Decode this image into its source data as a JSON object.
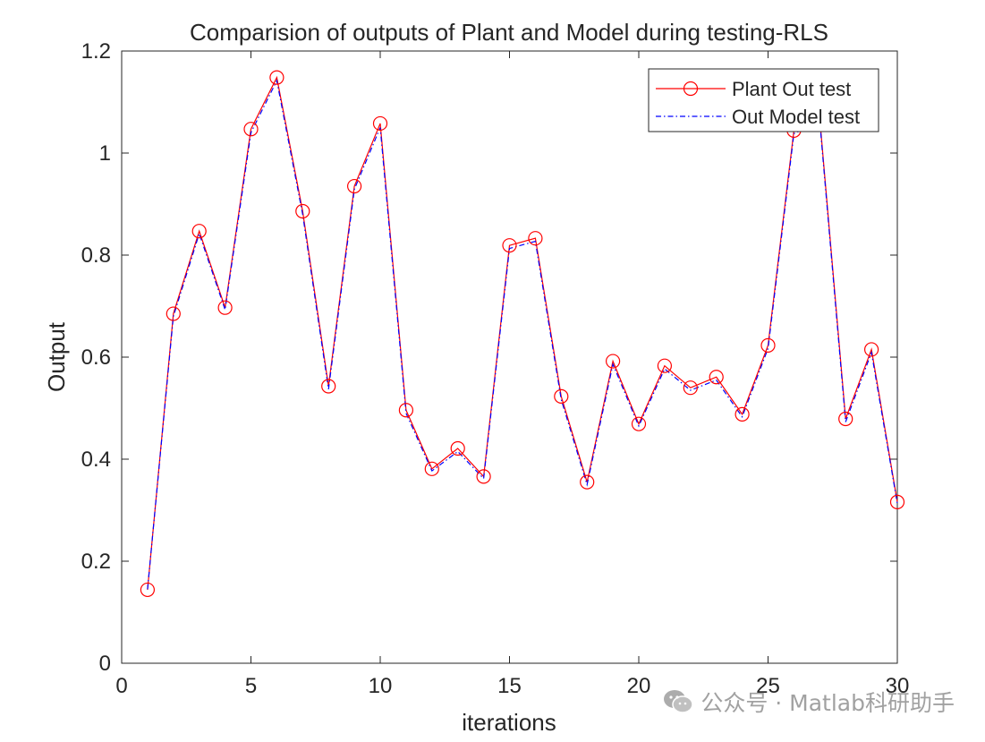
{
  "chart_data": {
    "type": "line",
    "title": "Comparision of outputs of Plant and Model during testing-RLS",
    "xlabel": "iterations",
    "ylabel": "Output",
    "xlim": [
      0,
      30
    ],
    "ylim": [
      0,
      1.2
    ],
    "x_ticks": [
      0,
      5,
      10,
      15,
      20,
      25,
      30
    ],
    "y_ticks": [
      0,
      0.2,
      0.4,
      0.6,
      0.8,
      1,
      1.2
    ],
    "x_tick_labels": [
      "0",
      "5",
      "10",
      "15",
      "20",
      "25",
      "30"
    ],
    "y_tick_labels": [
      "0",
      "0.2",
      "0.4",
      "0.6",
      "0.8",
      "1",
      "1.2"
    ],
    "legend_position": "top-right",
    "grid": false,
    "x": [
      1,
      2,
      3,
      4,
      5,
      6,
      7,
      8,
      9,
      10,
      11,
      12,
      13,
      14,
      15,
      16,
      17,
      18,
      19,
      20,
      21,
      22,
      23,
      24,
      25,
      26,
      27,
      28,
      29,
      30
    ],
    "series": [
      {
        "name": "Plant Out test",
        "color": "#ff0000",
        "style": "solid-circle-markers",
        "values": [
          0.144,
          0.685,
          0.847,
          0.697,
          1.047,
          1.148,
          0.886,
          0.543,
          0.935,
          1.058,
          0.496,
          0.381,
          0.421,
          0.366,
          0.819,
          0.833,
          0.523,
          0.355,
          0.592,
          0.469,
          0.583,
          0.54,
          0.561,
          0.488,
          0.623,
          1.044,
          1.068,
          0.479,
          0.615,
          0.316
        ]
      },
      {
        "name": "Out Model test",
        "color": "#0000ff",
        "style": "dash-dot",
        "values": [
          0.145,
          0.68,
          0.842,
          0.693,
          1.04,
          1.142,
          0.88,
          0.537,
          0.929,
          1.05,
          0.49,
          0.377,
          0.415,
          0.362,
          0.813,
          0.827,
          0.517,
          0.35,
          0.586,
          0.465,
          0.577,
          0.535,
          0.555,
          0.483,
          0.617,
          1.038,
          1.062,
          0.473,
          0.609,
          0.313
        ]
      }
    ]
  },
  "watermark": {
    "text": "公众号 · Matlab科研助手",
    "icon": "wechat-icon"
  }
}
